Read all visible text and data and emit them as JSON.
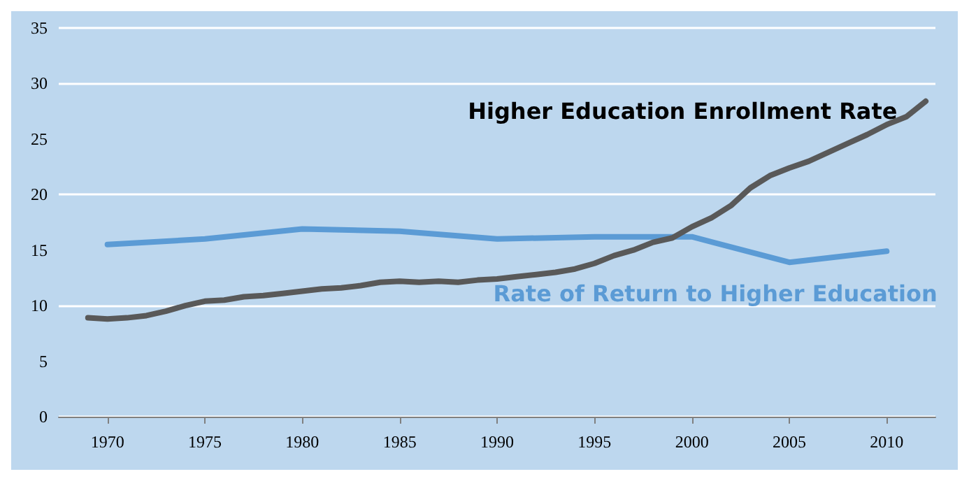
{
  "chart_data": {
    "type": "line",
    "xlim": [
      1967.5,
      2012.5
    ],
    "xticks": [
      1970,
      1975,
      1980,
      1985,
      1990,
      1995,
      2000,
      2005,
      2010
    ],
    "ylim": [
      0,
      35
    ],
    "yticks": [
      0,
      5,
      10,
      15,
      20,
      25,
      30,
      35
    ],
    "grid": "y",
    "legend": false,
    "marker": "none",
    "line_style": "solid",
    "series": [
      {
        "name": "Higher Education Enrollment Rate",
        "color": "#595959",
        "x": [
          1969,
          1970,
          1971,
          1972,
          1973,
          1974,
          1975,
          1976,
          1977,
          1978,
          1979,
          1980,
          1981,
          1982,
          1983,
          1984,
          1985,
          1986,
          1987,
          1988,
          1989,
          1990,
          1991,
          1992,
          1993,
          1994,
          1995,
          1996,
          1997,
          1998,
          1999,
          2000,
          2001,
          2002,
          2003,
          2004,
          2005,
          2006,
          2007,
          2008,
          2009,
          2010,
          2011,
          2012
        ],
        "values": [
          8.9,
          8.8,
          8.9,
          9.1,
          9.5,
          10.0,
          10.4,
          10.5,
          10.8,
          10.9,
          11.1,
          11.3,
          11.5,
          11.6,
          11.8,
          12.1,
          12.2,
          12.1,
          12.2,
          12.1,
          12.3,
          12.4,
          12.6,
          12.8,
          13.0,
          13.3,
          13.8,
          14.5,
          15.0,
          15.7,
          16.1,
          17.1,
          17.9,
          19.0,
          20.6,
          21.7,
          22.4,
          23.0,
          23.8,
          24.6,
          25.4,
          26.3,
          27.0,
          28.4
        ]
      },
      {
        "name": "Rate of Return to Higher Education",
        "color": "#5b9bd5",
        "x": [
          1970,
          1975,
          1980,
          1985,
          1990,
          1995,
          2000,
          2005,
          2010
        ],
        "values": [
          15.5,
          16.0,
          16.9,
          16.7,
          16.0,
          16.2,
          16.2,
          13.9,
          14.9
        ]
      }
    ]
  }
}
